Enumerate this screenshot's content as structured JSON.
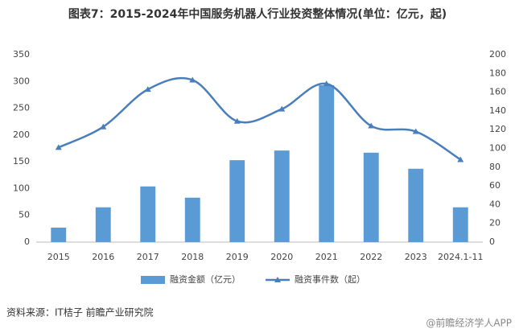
{
  "chart_data": {
    "type": "bar-line",
    "title": "图表7：2015-2024年中国服务机器人行业投资整体情况(单位：亿元，起)",
    "categories": [
      "2015",
      "2016",
      "2017",
      "2018",
      "2019",
      "2020",
      "2021",
      "2022",
      "2023",
      "2024.1-11"
    ],
    "series": [
      {
        "name": "融资金额（亿元）",
        "type": "bar",
        "color": "#5b9bd5",
        "values": [
          27,
          65,
          104,
          83,
          153,
          171,
          293,
          167,
          137,
          65
        ]
      },
      {
        "name": "融资事件数（起）",
        "type": "line",
        "axis": "y2",
        "color": "#4a7ebb",
        "values": [
          101,
          123,
          163,
          173,
          129,
          142,
          169,
          124,
          118,
          88
        ]
      }
    ],
    "ylim": [
      0,
      350
    ],
    "yticks": [
      0,
      50,
      100,
      150,
      200,
      250,
      300,
      350
    ],
    "y2lim": [
      0,
      200
    ],
    "y2ticks": [
      0,
      20,
      40,
      60,
      80,
      100,
      120,
      140,
      160,
      180,
      200
    ],
    "source": "资料来源：IT桔子 前瞻产业研究院",
    "watermark": "@前瞻经济学人APP"
  }
}
